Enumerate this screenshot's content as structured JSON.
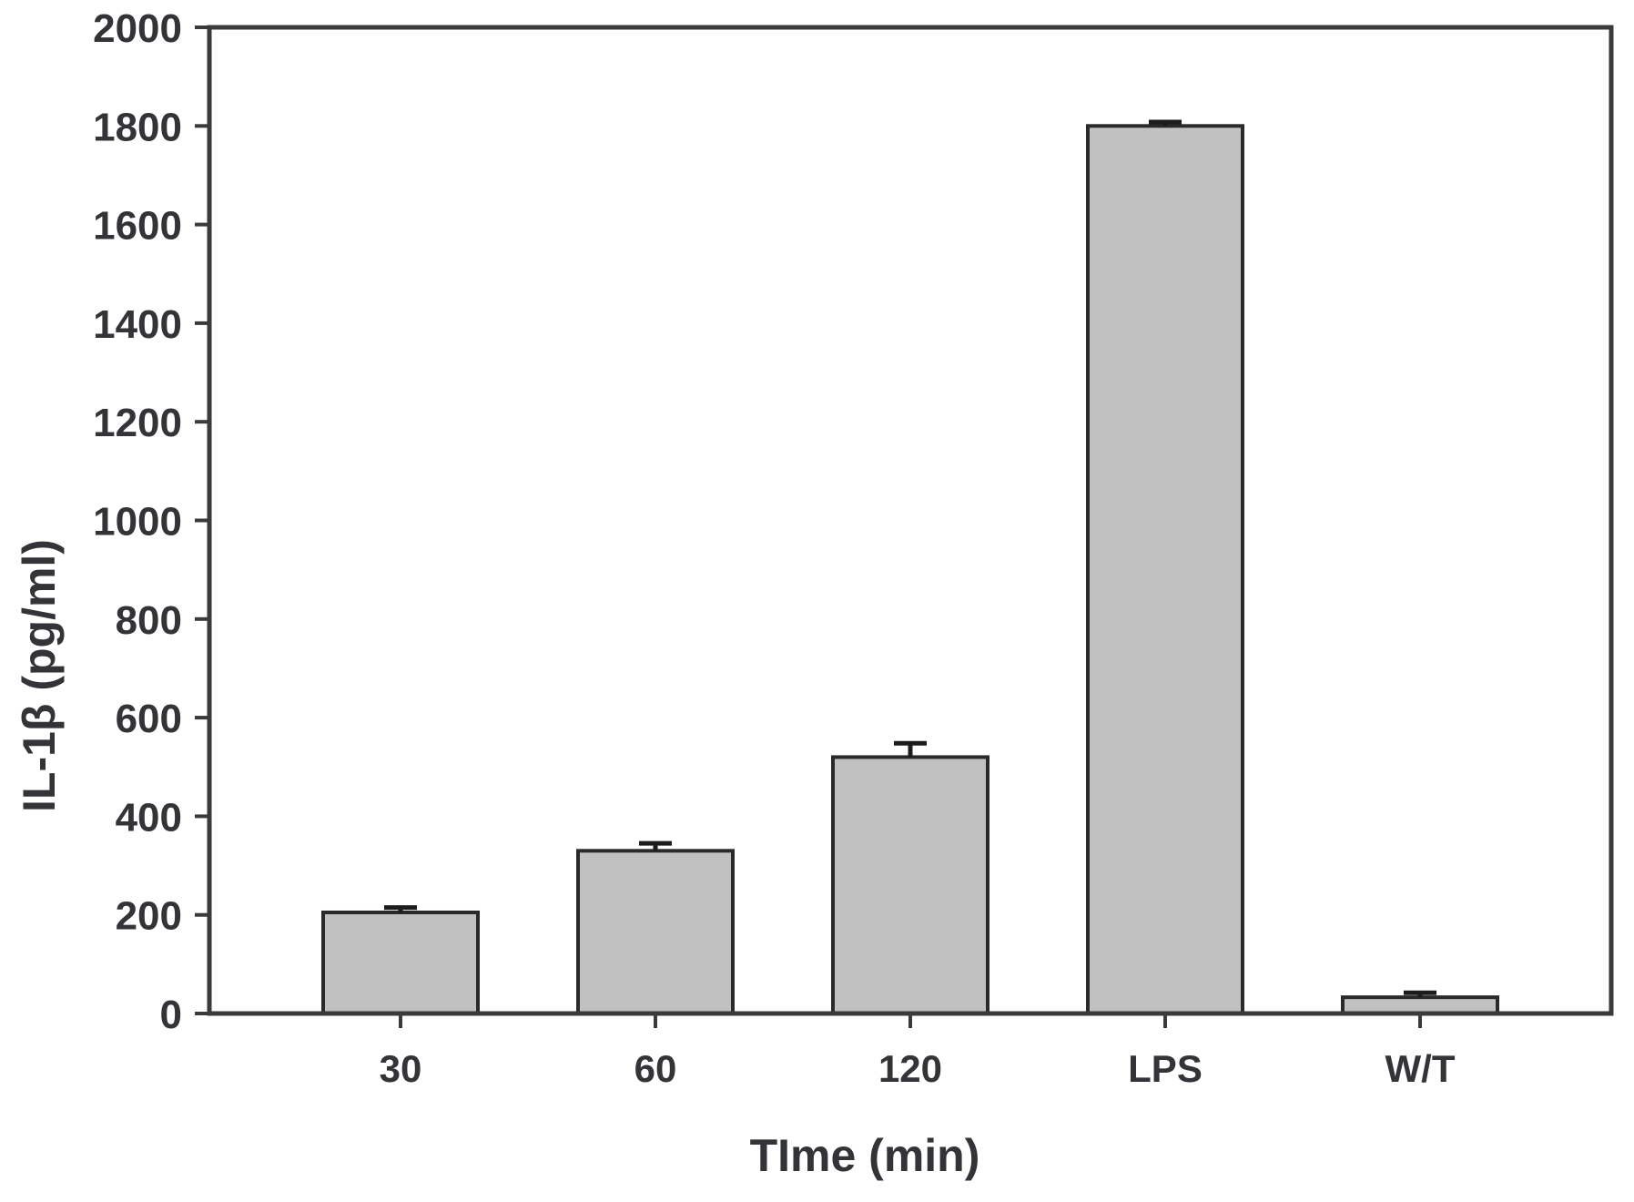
{
  "chart_data": {
    "type": "bar",
    "title": "",
    "xlabel": "TIme (min)",
    "ylabel": "IL-1β (pg/ml)",
    "categories": [
      "30",
      "60",
      "120",
      "LPS",
      "W/T"
    ],
    "values": [
      205,
      330,
      520,
      1800,
      33
    ],
    "errors": [
      10,
      15,
      28,
      8,
      9
    ],
    "error_direction": "upper-only",
    "ylim": [
      0,
      2000
    ],
    "ytick_step": 200,
    "yticks": [
      0,
      200,
      400,
      600,
      800,
      1000,
      1200,
      1400,
      1600,
      1800,
      2000
    ],
    "grid": false,
    "legend_position": "none",
    "colors": {
      "bar_fill": "#c1c1c1",
      "bar_border": "#2a2a2a",
      "axis": "#3a3a3a",
      "text": "#333338",
      "error_bar": "#1c1c1c",
      "background": "#ffffff"
    }
  }
}
